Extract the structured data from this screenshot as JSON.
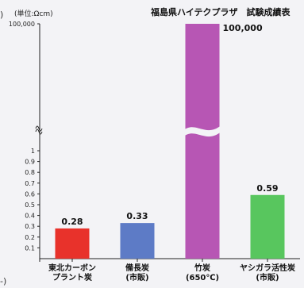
{
  "edge_marks": [
    ")",
    "-)"
  ],
  "chart_data": {
    "type": "bar",
    "title": "福島県ハイテクプラザ　試験成績表",
    "ylabel": "(単位:Ωcm)",
    "xlabel": "",
    "categories": [
      [
        "東北カーボン",
        "プラント炭"
      ],
      [
        "備長炭",
        "(市販)"
      ],
      [
        "竹炭",
        "(650℃)"
      ],
      [
        "ヤシガラ活性炭",
        "(市販)"
      ]
    ],
    "values": [
      0.28,
      0.33,
      100000,
      0.59
    ],
    "value_labels": [
      "0.28",
      "0.33",
      "100,000",
      "0.59"
    ],
    "colors": [
      "#e8322b",
      "#5d7bc6",
      "#b756b4",
      "#58c65e"
    ],
    "axis_break": true,
    "ylim_lower": [
      0,
      1
    ],
    "y_ticks_lower": [
      "0.1",
      "0.2",
      "0.3",
      "0.4",
      "0.5",
      "0.6",
      "0.7",
      "0.8",
      "0.9",
      "1"
    ],
    "y_tick_upper": "100,000",
    "grid": false,
    "legend": "none"
  }
}
